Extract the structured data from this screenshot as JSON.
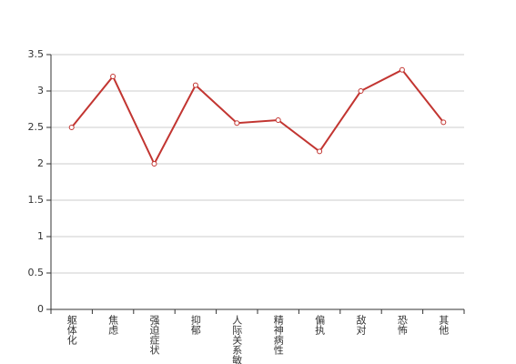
{
  "chart_data": {
    "type": "line",
    "categories": [
      "躯体化",
      "焦虑",
      "强迫症状",
      "抑郁",
      "人际关系敏感",
      "精神病性",
      "偏执",
      "敌对",
      "恐怖",
      "其他"
    ],
    "values": [
      2.5,
      3.2,
      2.0,
      3.08,
      2.56,
      2.6,
      2.17,
      3.0,
      3.29,
      2.57
    ],
    "color": "#c23531",
    "ylim": [
      0,
      3.5
    ],
    "yticks": [
      0,
      0.5,
      1,
      1.5,
      2,
      2.5,
      3,
      3.5
    ],
    "grid": true
  }
}
